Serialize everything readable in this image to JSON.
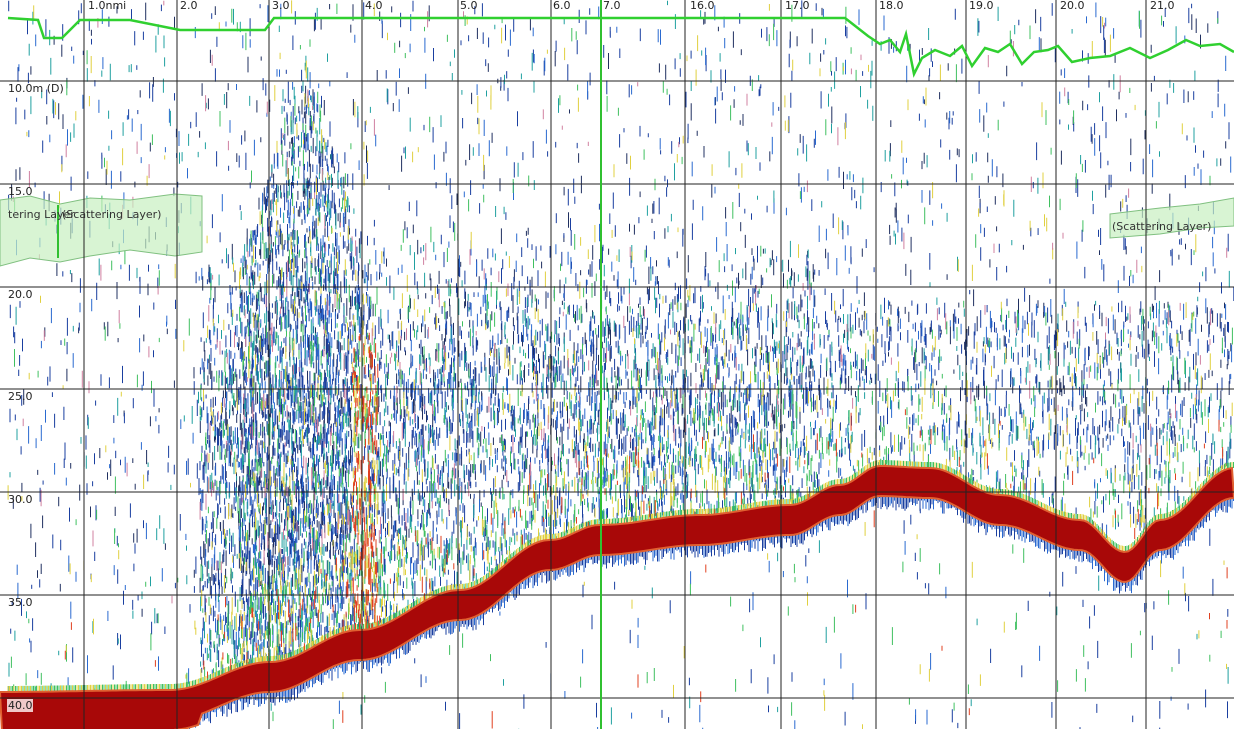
{
  "distance_labels": [
    "1.0nmi",
    "2.0",
    "3.0",
    "4.0",
    "5.0",
    "6.0",
    "7.0",
    "16.0",
    "17.0",
    "18.0",
    "19.0",
    "20.0",
    "21.0"
  ],
  "depth_labels": [
    "10.0m (D)",
    "15.0",
    "20.0",
    "25.0",
    "30.0",
    "35.0",
    "40.0"
  ],
  "region_labels": [
    "tering Layer",
    "(Scattering Layer)",
    "(Scattering Layer)"
  ]
}
